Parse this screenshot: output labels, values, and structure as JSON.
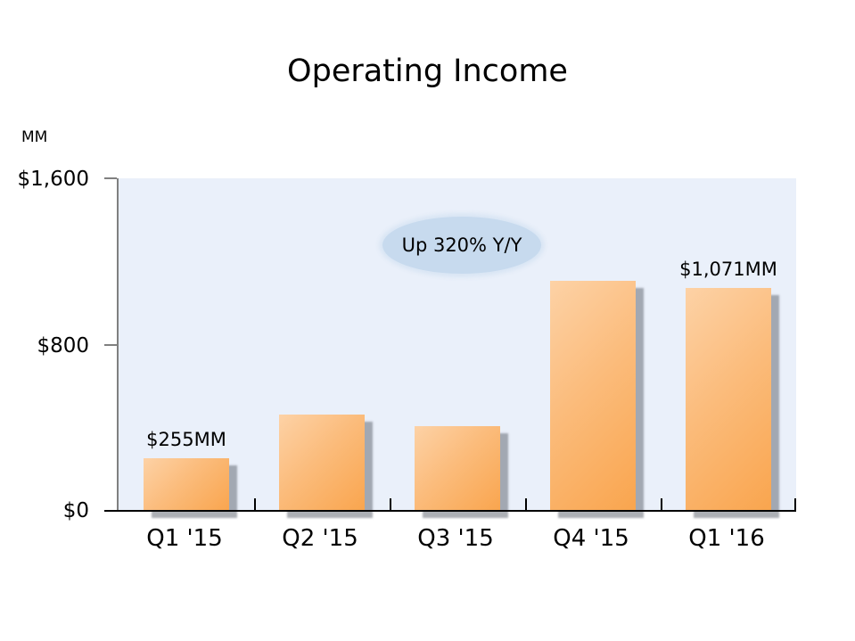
{
  "title": "Operating Income",
  "y_axis_unit": "MM",
  "chart_data": {
    "type": "bar",
    "title": "Operating Income",
    "categories": [
      "Q1 '15",
      "Q2 '15",
      "Q3 '15",
      "Q4 '15",
      "Q1 '16"
    ],
    "values": [
      255,
      464,
      406,
      1108,
      1071
    ],
    "value_unit": "MM (USD millions)",
    "xlabel": "",
    "ylabel": "MM",
    "ylim": [
      0,
      1600
    ],
    "y_tick_labels": [
      "$1,600",
      "$800",
      "$0"
    ],
    "y_tick_values": [
      1600,
      800,
      0
    ],
    "grid": false,
    "legend": false,
    "bar_labels": [
      "$255MM",
      null,
      null,
      null,
      "$1,071MM"
    ],
    "annotation": "Up 320% Y/Y",
    "colors": {
      "bar_gradient_start": "#FDD2A6",
      "bar_gradient_end": "#F9A54E",
      "bar_shadow": "#9aa0ab",
      "plot_background": "#EAF0FA",
      "annotation_fill": "#C7DAEE",
      "annotation_halo": "#D8E5F3",
      "x_axis_line": "#000000",
      "y_axis_line": "#808080",
      "text": "#000000"
    }
  }
}
